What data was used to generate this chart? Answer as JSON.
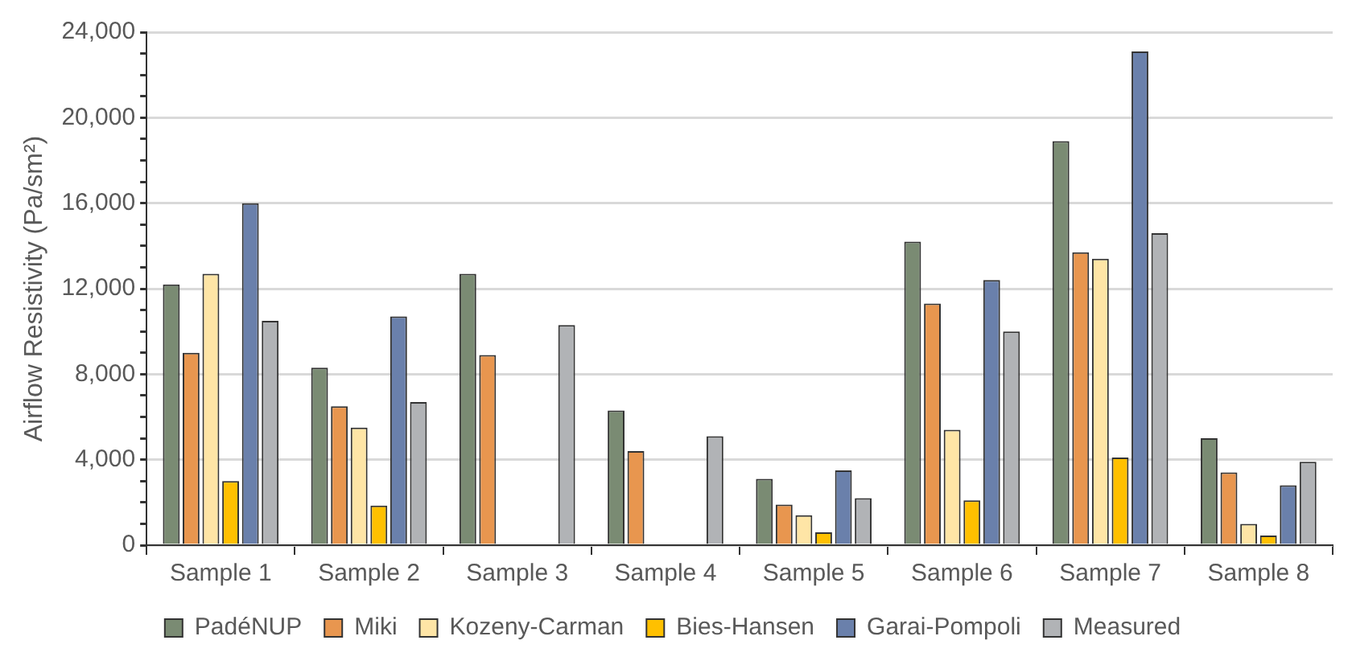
{
  "chart_data": {
    "type": "bar",
    "ylabel": "Airflow Resistivity (Pa/sm²)",
    "categories": [
      "Sample 1",
      "Sample 2",
      "Sample 3",
      "Sample 4",
      "Sample 5",
      "Sample 6",
      "Sample 7",
      "Sample 8"
    ],
    "series": [
      {
        "name": "PadéNUP",
        "color": "#7a8b73",
        "values": [
          12200,
          8300,
          12700,
          6300,
          3100,
          14200,
          18900,
          5000
        ]
      },
      {
        "name": "Miki",
        "color": "#e8964f",
        "values": [
          9000,
          6500,
          8900,
          4400,
          1900,
          11300,
          13700,
          3400
        ]
      },
      {
        "name": "Kozeny-Carman",
        "color": "#fee5a6",
        "values": [
          12700,
          5500,
          null,
          null,
          1400,
          5400,
          13400,
          1000
        ]
      },
      {
        "name": "Bies-Hansen",
        "color": "#ffc000",
        "values": [
          3000,
          1850,
          null,
          null,
          600,
          2100,
          4100,
          450
        ]
      },
      {
        "name": "Garai-Pompoli",
        "color": "#6a80ab",
        "values": [
          16000,
          10700,
          null,
          null,
          3500,
          12400,
          23100,
          2800
        ]
      },
      {
        "name": "Measured",
        "color": "#b1b3b6",
        "values": [
          10500,
          6700,
          10300,
          5100,
          2200,
          10000,
          14600,
          3900
        ]
      }
    ],
    "ylim": [
      0,
      24000
    ],
    "yticks": [
      {
        "value": 0,
        "label": "0"
      },
      {
        "value": 1000,
        "label": null
      },
      {
        "value": 2000,
        "label": null
      },
      {
        "value": 3000,
        "label": null
      },
      {
        "value": 4000,
        "label": "4,000"
      },
      {
        "value": 5000,
        "label": null
      },
      {
        "value": 6000,
        "label": null
      },
      {
        "value": 7000,
        "label": null
      },
      {
        "value": 8000,
        "label": "8,000"
      },
      {
        "value": 9000,
        "label": null
      },
      {
        "value": 10000,
        "label": null
      },
      {
        "value": 11000,
        "label": null
      },
      {
        "value": 12000,
        "label": "12,000"
      },
      {
        "value": 13000,
        "label": null
      },
      {
        "value": 14000,
        "label": null
      },
      {
        "value": 15000,
        "label": null
      },
      {
        "value": 16000,
        "label": "16,000"
      },
      {
        "value": 17000,
        "label": null
      },
      {
        "value": 18000,
        "label": null
      },
      {
        "value": 19000,
        "label": null
      },
      {
        "value": 20000,
        "label": "20,000"
      },
      {
        "value": 21000,
        "label": null
      },
      {
        "value": 22000,
        "label": null
      },
      {
        "value": 23000,
        "label": null
      },
      {
        "value": 24000,
        "label": "24,000"
      }
    ],
    "grid": "y",
    "legend": "bottom"
  }
}
